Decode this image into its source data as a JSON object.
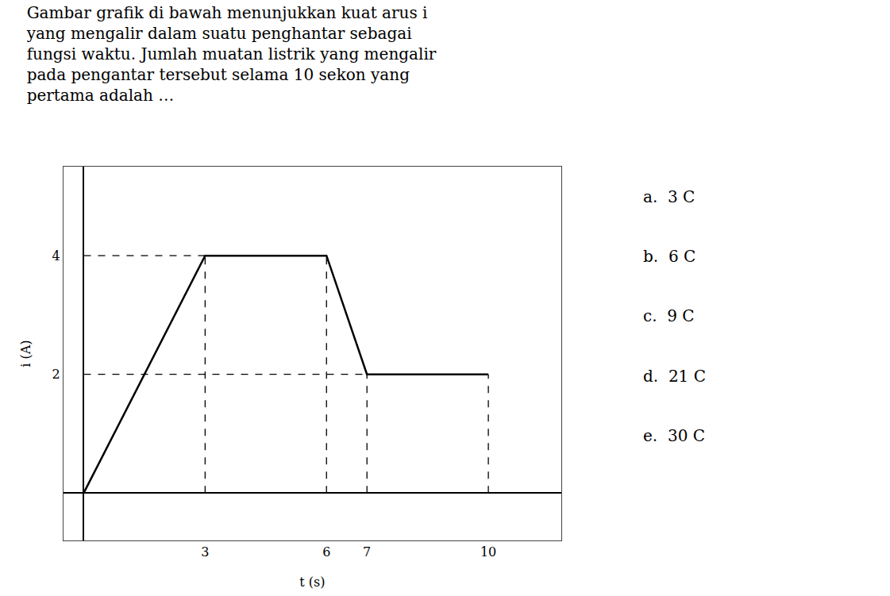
{
  "chart_data": {
    "type": "line",
    "title": "Gambar grafik di bawah menunjukkan kuat arus i\nyang mengalir dalam suatu penghantar sebagai\nfungsi waktu. Jumlah muatan listrik yang mengalir\npada pengantar tersebut selama 10 sekon yang\npertama adalah …",
    "x_label": "t (s)",
    "y_label": "i (A)",
    "color": "#000000",
    "series": [
      {
        "x": [
          0,
          3,
          6,
          7,
          10
        ],
        "values": [
          0,
          4,
          4,
          2,
          2
        ],
        "line_style": "solid"
      },
      {
        "x": [
          3,
          3
        ],
        "values": [
          0,
          4
        ],
        "line_style": "dashed"
      },
      {
        "x": [
          6,
          6
        ],
        "values": [
          0,
          4
        ],
        "line_style": "dashed"
      },
      {
        "x": [
          7,
          7
        ],
        "values": [
          0,
          2
        ],
        "line_style": "dashed"
      },
      {
        "x": [
          10,
          10
        ],
        "values": [
          0,
          2
        ],
        "line_style": "dashed"
      },
      {
        "x": [
          0,
          3
        ],
        "values": [
          4,
          4
        ],
        "line_style": "dashed"
      },
      {
        "x": [
          0,
          7
        ],
        "values": [
          2,
          2
        ],
        "line_style": "dashed"
      }
    ],
    "xlim": [
      -0.5,
      11.8
    ],
    "ylim": [
      -0.8,
      5.5
    ],
    "xticks": [
      3,
      6,
      7,
      10
    ],
    "yticks": [
      2,
      4
    ],
    "grid": false,
    "annotations": [
      "a.  3 C",
      "b.  6 C",
      "c.  9 C",
      "d.  21 C",
      "e.  30 C"
    ]
  }
}
